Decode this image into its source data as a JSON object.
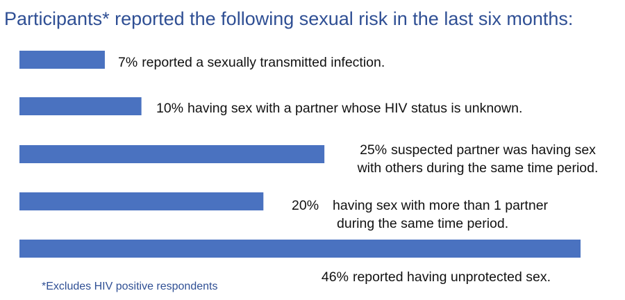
{
  "chart_data": {
    "type": "bar",
    "orientation": "horizontal",
    "title": "Participants* reported the following sexual risk in the last six months:",
    "categories": [
      "reported a sexually transmitted infection.",
      "having sex with a partner whose HIV status is unknown.",
      "suspected partner was having sex\nwith others during the same time period.",
      "having sex with more than 1 partner\nduring the same time period.",
      "reported having unprotected sex."
    ],
    "values": [
      7,
      10,
      25,
      20,
      46
    ],
    "value_labels": [
      "7%",
      "10%",
      "25%",
      "20%",
      "46%"
    ],
    "color": "#4a72c0",
    "footnote": "*Excludes HIV positive respondents"
  }
}
